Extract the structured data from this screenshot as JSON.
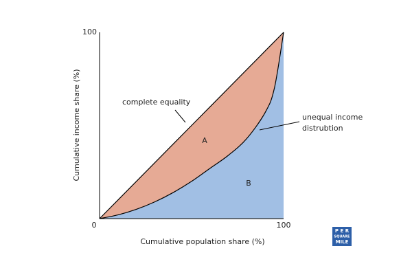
{
  "chart_data": {
    "type": "lorenz",
    "x_label": "Cumulative population share (%)",
    "y_label": "Cumulative income share (%)",
    "xlim": [
      0,
      100
    ],
    "ylim": [
      0,
      100
    ],
    "xticks": [
      0,
      100
    ],
    "yticks": [
      100
    ],
    "x": [
      0,
      10,
      20,
      30,
      40,
      50,
      60,
      70,
      80,
      90,
      95,
      100
    ],
    "series": [
      {
        "name": "complete equality",
        "color": "#000000",
        "values": [
          0,
          10,
          20,
          30,
          40,
          50,
          60,
          70,
          80,
          90,
          95,
          100
        ]
      },
      {
        "name": "unequal income distrubtion",
        "color": "#000000",
        "values": [
          0,
          2,
          5,
          9,
          14,
          20,
          27,
          34,
          43,
          57,
          70,
          100
        ]
      }
    ],
    "fill_colors": [
      "#e6aa95",
      "#a1bfe4"
    ],
    "area_labels": [
      "A",
      "B"
    ],
    "annotations": [
      "complete equality",
      "unequal income",
      "distrubtion"
    ],
    "logo": [
      "P E R",
      "SQUARE",
      "MILE"
    ]
  }
}
